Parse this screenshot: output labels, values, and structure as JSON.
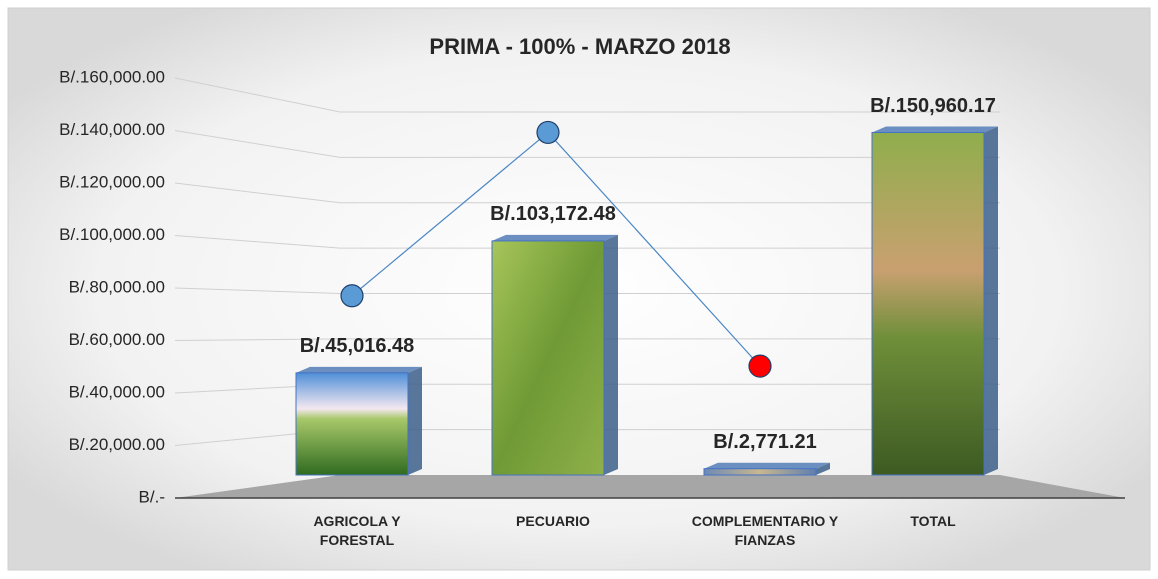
{
  "chart_data": {
    "type": "bar",
    "title": "PRIMA - 100% - MARZO 2018",
    "categories": [
      "AGRICOLA Y FORESTAL",
      "PECUARIO",
      "COMPLEMENTARIO Y FIANZAS",
      "TOTAL"
    ],
    "values": [
      45016.48,
      103172.48,
      2771.21,
      150960.17
    ],
    "value_labels": [
      "B/.45,016.48",
      "B/.103,172.48",
      "B/.2,771.21",
      "B/.150,960.17"
    ],
    "overlay": {
      "type": "line",
      "color": "#4a86c5",
      "values": [
        79000,
        151000,
        48000,
        null
      ],
      "marker_colors": [
        "#5b9bd5",
        "#5b9bd5",
        "#ff0000",
        null
      ]
    },
    "ylim": [
      0,
      160000
    ],
    "yticks": [
      {
        "value": 0,
        "label": "B/.-"
      },
      {
        "value": 20000,
        "label": "B/.20,000.00"
      },
      {
        "value": 40000,
        "label": "B/.40,000.00"
      },
      {
        "value": 60000,
        "label": "B/.60,000.00"
      },
      {
        "value": 80000,
        "label": "B/.80,000.00"
      },
      {
        "value": 100000,
        "label": "B/.100,000.00"
      },
      {
        "value": 120000,
        "label": "B/.120,000.00"
      },
      {
        "value": 140000,
        "label": "B/.140,000.00"
      },
      {
        "value": 160000,
        "label": "B/.160,000.00"
      }
    ],
    "grid": true
  }
}
